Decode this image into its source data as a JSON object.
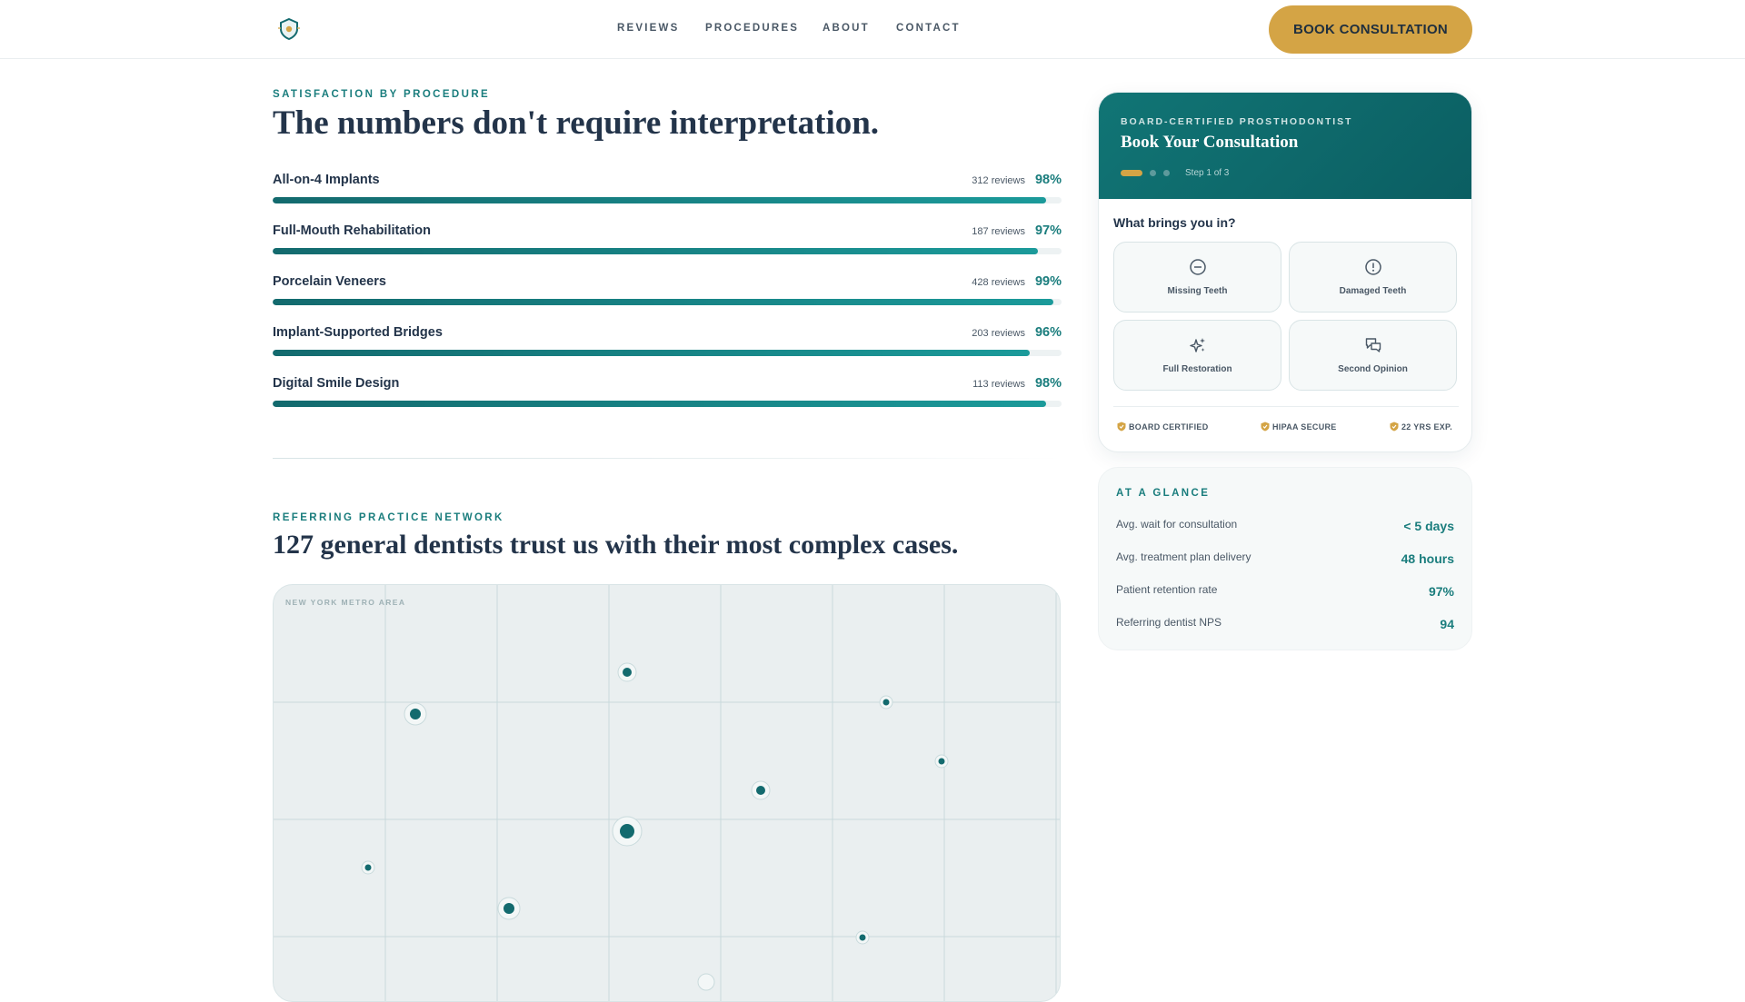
{
  "nav": {
    "links": [
      "REVIEWS",
      "PROCEDURES",
      "ABOUT",
      "CONTACT"
    ],
    "cta": "BOOK CONSULTATION"
  },
  "satisfaction": {
    "eyebrow": "SATISFACTION BY PROCEDURE",
    "title": "The numbers don't require interpretation.",
    "procedures": [
      {
        "name": "All-on-4 Implants",
        "reviews": "312 reviews",
        "percent": "98%",
        "value": 98
      },
      {
        "name": "Full-Mouth Rehabilitation",
        "reviews": "187 reviews",
        "percent": "97%",
        "value": 97
      },
      {
        "name": "Porcelain Veneers",
        "reviews": "428 reviews",
        "percent": "99%",
        "value": 99
      },
      {
        "name": "Implant-Supported Bridges",
        "reviews": "203 reviews",
        "percent": "96%",
        "value": 96
      },
      {
        "name": "Digital Smile Design",
        "reviews": "113 reviews",
        "percent": "98%",
        "value": 98
      }
    ]
  },
  "network": {
    "eyebrow": "REFERRING PRACTICE NETWORK",
    "title": "127 general dentists trust us with their most complex cases.",
    "map_label": "NEW YORK METRO AREA"
  },
  "consult": {
    "eyebrow": "BOARD-CERTIFIED PROSTHODONTIST",
    "title": "Book Your Consultation",
    "step_text": "Step 1 of 3",
    "question": "What brings you in?",
    "options": [
      {
        "label": "Missing Teeth",
        "icon": "minus-circle-icon"
      },
      {
        "label": "Damaged Teeth",
        "icon": "alert-circle-icon"
      },
      {
        "label": "Full Restoration",
        "icon": "sparkles-icon"
      },
      {
        "label": "Second Opinion",
        "icon": "chat-bubbles-icon"
      }
    ],
    "badges": [
      "BOARD CERTIFIED",
      "HIPAA SECURE",
      "22 YRS EXP."
    ]
  },
  "glance": {
    "title": "AT A GLANCE",
    "rows": [
      {
        "label": "Avg. wait for consultation",
        "value": "< 5 days"
      },
      {
        "label": "Avg. treatment plan delivery",
        "value": "48 hours"
      },
      {
        "label": "Patient retention rate",
        "value": "97%"
      },
      {
        "label": "Referring dentist NPS",
        "value": "94"
      }
    ]
  },
  "colors": {
    "accent_teal": "#1a7d7d",
    "accent_gold": "#d4a445",
    "heading": "#23344a"
  }
}
